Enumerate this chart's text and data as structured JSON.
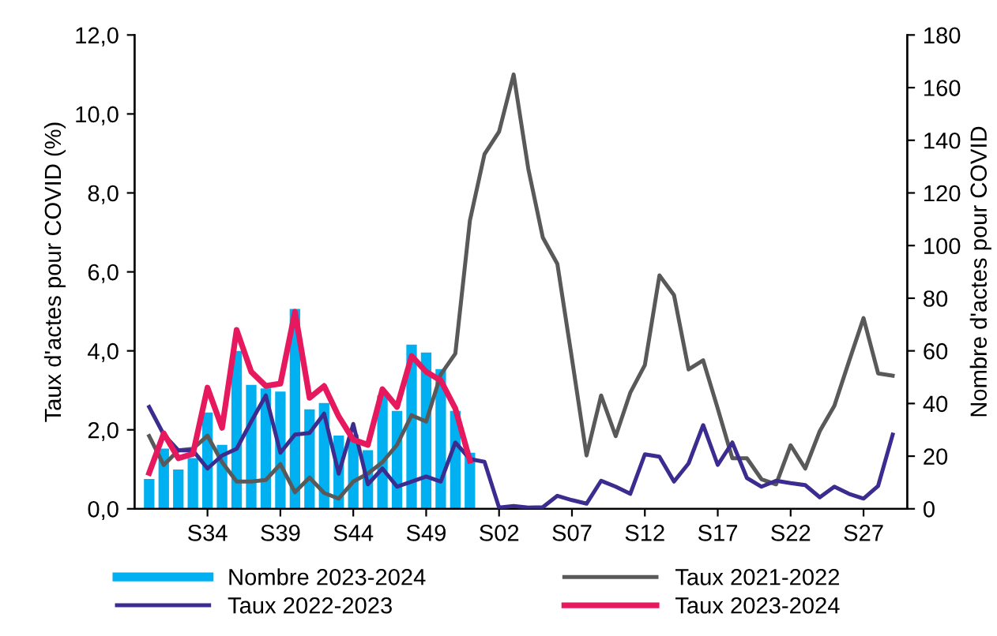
{
  "chart_data": {
    "type": "bar",
    "xlabel": null,
    "ylabel": "Taux d'actes pour COVID (%)",
    "y2label": "Nombre d'actes pour COVID",
    "categories": [
      null,
      null,
      null,
      null,
      "S34",
      null,
      null,
      null,
      null,
      "S39",
      null,
      null,
      null,
      null,
      "S44",
      null,
      null,
      null,
      null,
      "S49",
      null,
      null,
      null,
      null,
      "S02",
      null,
      null,
      null,
      null,
      "S07",
      null,
      null,
      null,
      null,
      "S12",
      null,
      null,
      null,
      null,
      "S17",
      null,
      null,
      null,
      null,
      "S22",
      null,
      null,
      null,
      null,
      "S27",
      null,
      null
    ],
    "series": [
      {
        "name": "Nombre 2023-2024",
        "axis": "y2",
        "color": "#00b0f0",
        "values": [
          11.3,
          22.9,
          14.9,
          19.3,
          36.6,
          24.3,
          60,
          47.1,
          45.7,
          44.5,
          75.9,
          37.8,
          40.2,
          27.8,
          28.2,
          22.3,
          43.1,
          37.2,
          62.4,
          59.4,
          53.1,
          37.2,
          21.3,
          null,
          null,
          null,
          null,
          null,
          null,
          null,
          null,
          null,
          null,
          null,
          null,
          null,
          null,
          null,
          null,
          null,
          null,
          null,
          null,
          null,
          null,
          null,
          null,
          null,
          null,
          null,
          null,
          null
        ]
      },
      {
        "name": "Taux 2021-2022",
        "type": "line",
        "color": "#595959",
        "values": [
          1.84,
          1.11,
          1.48,
          1.52,
          1.85,
          1.18,
          0.69,
          0.69,
          0.73,
          1.13,
          0.42,
          0.79,
          0.4,
          0.26,
          0.69,
          0.89,
          1.18,
          1.62,
          2.37,
          2.21,
          3.4,
          3.93,
          7.3,
          8.98,
          9.55,
          11.0,
          8.62,
          6.87,
          6.2,
          3.8,
          1.35,
          2.87,
          1.84,
          2.94,
          3.64,
          5.91,
          5.41,
          3.53,
          3.76,
          2.54,
          1.28,
          1.28,
          0.75,
          0.62,
          1.61,
          1.02,
          1.97,
          2.61,
          3.73,
          4.83,
          3.43,
          3.37
        ]
      },
      {
        "name": "Taux 2022-2023",
        "type": "line",
        "color": "#3b2d8f",
        "values": [
          2.58,
          1.88,
          1.48,
          1.48,
          1.02,
          1.35,
          1.52,
          2.21,
          2.87,
          1.42,
          1.88,
          1.92,
          2.41,
          0.89,
          2.15,
          0.62,
          1.02,
          0.56,
          0.69,
          0.82,
          0.69,
          1.68,
          1.26,
          1.19,
          0.03,
          0.07,
          0.03,
          0.04,
          0.33,
          0.22,
          0.13,
          0.71,
          0.56,
          0.38,
          1.38,
          1.32,
          0.69,
          1.15,
          2.12,
          1.11,
          1.68,
          0.78,
          0.56,
          0.71,
          0.65,
          0.6,
          0.29,
          0.56,
          0.38,
          0.26,
          0.58,
          1.88
        ]
      },
      {
        "name": "Taux 2023-2024",
        "type": "line",
        "color": "#e6195f",
        "values": [
          0.91,
          1.91,
          1.28,
          1.39,
          3.07,
          2.05,
          4.53,
          3.47,
          3.11,
          3.17,
          4.99,
          2.81,
          3.11,
          2.34,
          1.75,
          1.62,
          3.03,
          2.58,
          3.87,
          3.47,
          3.25,
          2.54,
          1.22,
          null,
          null,
          null,
          null,
          null,
          null,
          null,
          null,
          null,
          null,
          null,
          null,
          null,
          null,
          null,
          null,
          null,
          null,
          null,
          null,
          null,
          null,
          null,
          null,
          null,
          null,
          null,
          null,
          null
        ]
      }
    ],
    "ylim": [
      0,
      12
    ],
    "yticks": [
      {
        "value": 0,
        "label": "0,0"
      },
      {
        "value": 2,
        "label": "2,0"
      },
      {
        "value": 4,
        "label": "4,0"
      },
      {
        "value": 6,
        "label": "6,0"
      },
      {
        "value": 8,
        "label": "8,0"
      },
      {
        "value": 10,
        "label": "10,0"
      },
      {
        "value": 12,
        "label": "12,0"
      }
    ],
    "y2lim": [
      0,
      180
    ],
    "y2ticks": [
      0,
      20,
      40,
      60,
      80,
      100,
      120,
      140,
      160,
      180
    ],
    "grid": false,
    "legend": "bottom"
  }
}
